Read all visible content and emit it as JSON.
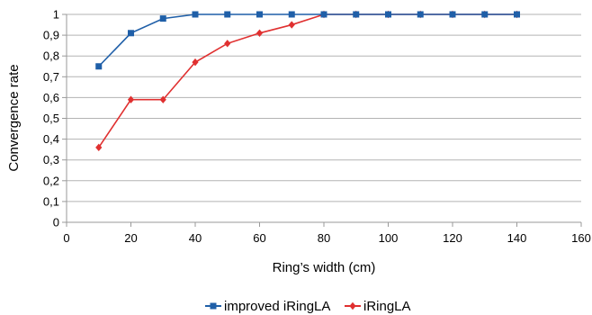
{
  "chart_data": {
    "type": "line",
    "title": "",
    "xlabel": "Ring’s width (cm)",
    "ylabel": "Convergence rate",
    "xlim": [
      0,
      160
    ],
    "ylim": [
      0,
      1
    ],
    "x_ticks": [
      "0",
      "20",
      "40",
      "60",
      "80",
      "100",
      "120",
      "140",
      "160"
    ],
    "y_ticks": [
      "0",
      "0,1",
      "0,2",
      "0,3",
      "0,4",
      "0,5",
      "0,6",
      "0,7",
      "0,8",
      "0,9",
      "1"
    ],
    "grid": true,
    "legend_position": "bottom",
    "series": [
      {
        "name": "improved iRingLA",
        "color": "#1f5fa8",
        "marker": "square",
        "x": [
          10,
          20,
          30,
          40,
          50,
          60,
          70,
          80,
          90,
          100,
          110,
          120,
          130,
          140
        ],
        "y": [
          0.75,
          0.91,
          0.98,
          1,
          1,
          1,
          1,
          1,
          1,
          1,
          1,
          1,
          1,
          1
        ]
      },
      {
        "name": "iRingLA",
        "color": "#e03030",
        "marker": "diamond",
        "x": [
          10,
          20,
          30,
          40,
          50,
          60,
          70,
          80,
          90,
          100,
          110,
          120,
          130,
          140
        ],
        "y": [
          0.36,
          0.59,
          0.59,
          0.77,
          0.86,
          0.91,
          0.95,
          1,
          1,
          1,
          1,
          1,
          1,
          1
        ]
      }
    ]
  }
}
